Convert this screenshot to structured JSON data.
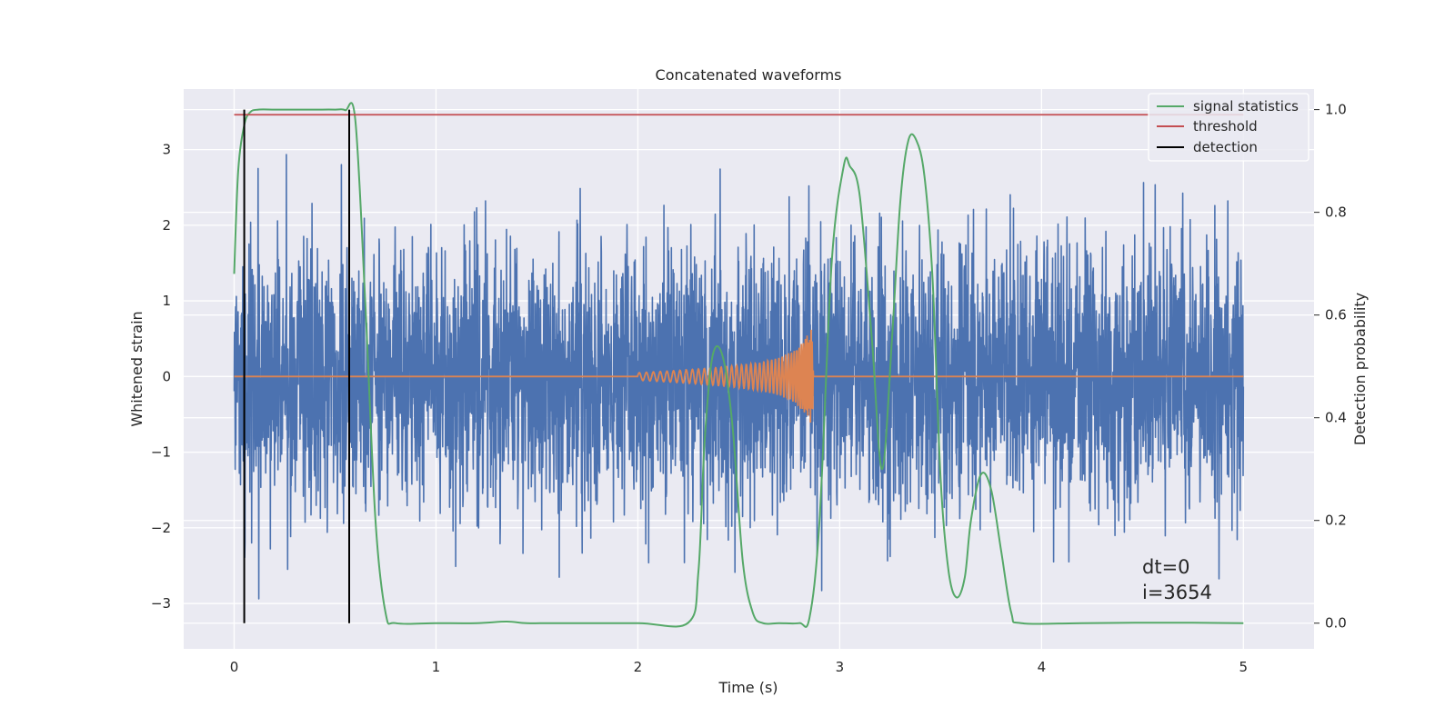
{
  "chart_data": {
    "type": "line",
    "title": "Concatenated waveforms",
    "xlabel": "Time (s)",
    "ylabel": "Whitened strain",
    "y2label": "Detection probability",
    "xlim": [
      -0.25,
      5.35
    ],
    "ylim": [
      -3.6,
      3.8
    ],
    "y2lim": [
      -0.05,
      1.04
    ],
    "xticks": [
      "0",
      "1",
      "2",
      "3",
      "4",
      "5"
    ],
    "yticks": [
      "−3",
      "−2",
      "−1",
      "0",
      "1",
      "2",
      "3"
    ],
    "y2ticks": [
      "0.0",
      "0.2",
      "0.4",
      "0.6",
      "0.8",
      "1.0"
    ],
    "grid": true,
    "legend_position": "top-right",
    "legend": [
      {
        "label": "signal statistics",
        "color": "#55a868"
      },
      {
        "label": "threshold",
        "color": "#c44e52"
      },
      {
        "label": "detection",
        "color": "#000000"
      }
    ],
    "series": [
      {
        "name": "whitened strain",
        "color": "#4c72b0",
        "axis": "left",
        "x_range": [
          0,
          5
        ],
        "samples": 4096,
        "style": "dense noise",
        "approx_std": 0.85,
        "approx_extremes": [
          -3.3,
          3.5
        ]
      },
      {
        "name": "injected waveform",
        "color": "#dd8452",
        "axis": "left",
        "x": [
          0,
          2.0,
          2.2,
          2.4,
          2.6,
          2.7,
          2.78,
          2.83,
          2.86,
          2.88,
          5
        ],
        "envelope": [
          0,
          0.05,
          0.08,
          0.12,
          0.18,
          0.25,
          0.35,
          0.5,
          0.65,
          0.0,
          0
        ]
      },
      {
        "name": "signal statistics",
        "color": "#55a868",
        "axis": "right",
        "x": [
          0,
          0.02,
          0.05,
          0.08,
          0.12,
          0.2,
          0.3,
          0.4,
          0.5,
          0.55,
          0.6,
          0.65,
          0.7,
          0.75,
          0.8,
          1.0,
          1.2,
          1.35,
          1.45,
          1.6,
          2.0,
          2.25,
          2.3,
          2.33,
          2.37,
          2.42,
          2.47,
          2.52,
          2.57,
          2.62,
          2.7,
          2.8,
          2.85,
          2.9,
          2.96,
          3.02,
          3.05,
          3.1,
          3.16,
          3.21,
          3.26,
          3.3,
          3.34,
          3.38,
          3.42,
          3.46,
          3.5,
          3.54,
          3.58,
          3.62,
          3.65,
          3.7,
          3.75,
          3.8,
          3.85,
          3.9,
          4.2,
          4.6,
          5.0
        ],
        "y": [
          0.68,
          0.88,
          0.97,
          0.995,
          1.0,
          1.0,
          1.0,
          1.0,
          1.0,
          0.999,
          0.98,
          0.62,
          0.2,
          0.02,
          0.0,
          0.0,
          0.0,
          0.003,
          0.0,
          0.0,
          0.0,
          0.001,
          0.1,
          0.35,
          0.52,
          0.52,
          0.38,
          0.12,
          0.02,
          0.0,
          0.0,
          0.0,
          0.01,
          0.2,
          0.7,
          0.89,
          0.89,
          0.83,
          0.55,
          0.3,
          0.56,
          0.82,
          0.94,
          0.94,
          0.87,
          0.67,
          0.28,
          0.1,
          0.05,
          0.09,
          0.2,
          0.29,
          0.26,
          0.14,
          0.02,
          0.0,
          0.0,
          0.001,
          0.0
        ]
      },
      {
        "name": "threshold",
        "color": "#c44e52",
        "axis": "right",
        "x": [
          0,
          5
        ],
        "y": [
          0.99,
          0.99
        ]
      }
    ],
    "detections": [
      0.05,
      0.57
    ],
    "annotations": [
      "dt=0",
      "i=3654"
    ]
  }
}
